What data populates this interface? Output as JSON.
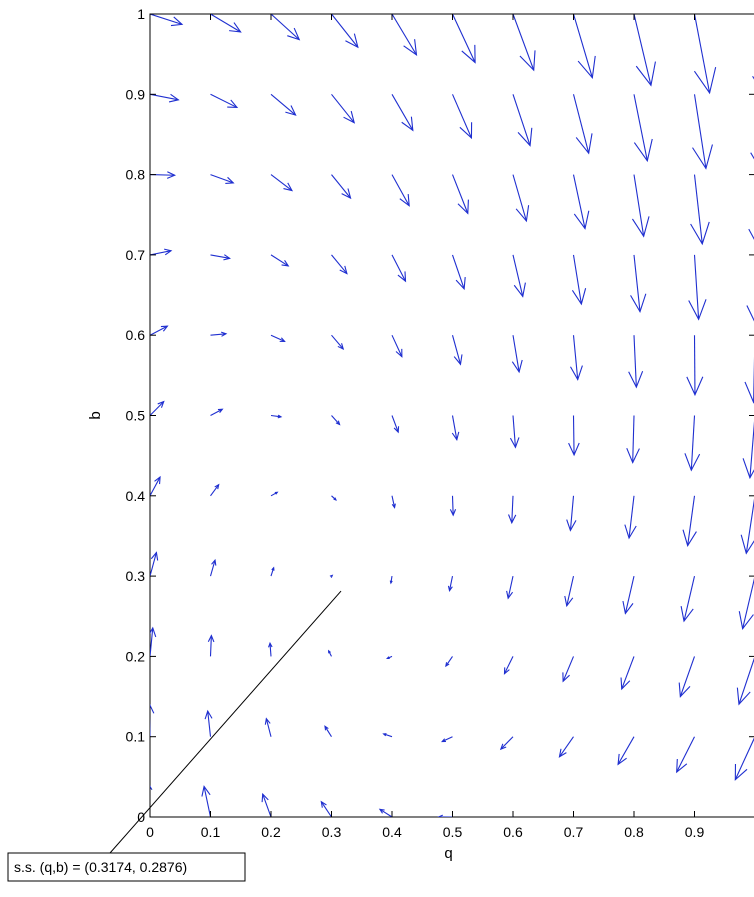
{
  "chart_data": {
    "type": "quiver",
    "title": "",
    "xlabel": "q",
    "ylabel": "b",
    "xlim": [
      0,
      1
    ],
    "ylim": [
      0,
      1
    ],
    "xticks": [
      0,
      0.1,
      0.2,
      0.3,
      0.4,
      0.5,
      0.6,
      0.7,
      0.8,
      0.9
    ],
    "xtick_labels": [
      "0",
      "0.1",
      "0.2",
      "0.3",
      "0.4",
      "0.5",
      "0.6",
      "0.7",
      "0.8",
      "0.9"
    ],
    "yticks": [
      0,
      0.1,
      0.2,
      0.3,
      0.4,
      0.5,
      0.6,
      0.7,
      0.8,
      0.9,
      1
    ],
    "ytick_labels": [
      "0",
      "0.1",
      "0.2",
      "0.3",
      "0.4",
      "0.5",
      "0.6",
      "0.7",
      "0.8",
      "0.9",
      "1"
    ],
    "grid": false,
    "arrow_color": "#1f2fd0",
    "field": {
      "x": [
        0,
        0.1,
        0.2,
        0.3,
        0.4,
        0.5,
        0.6,
        0.7,
        0.8,
        0.9,
        1.0
      ],
      "y": [
        0,
        0.1,
        0.2,
        0.3,
        0.4,
        0.5,
        0.6,
        0.7,
        0.8,
        0.9,
        1.0
      ],
      "equilibrium": [
        0.3174,
        0.2876
      ]
    },
    "annotation": {
      "text": "s.s. (q,b) = (0.3174, 0.2876)",
      "point": [
        0.3174,
        0.2876
      ]
    }
  }
}
